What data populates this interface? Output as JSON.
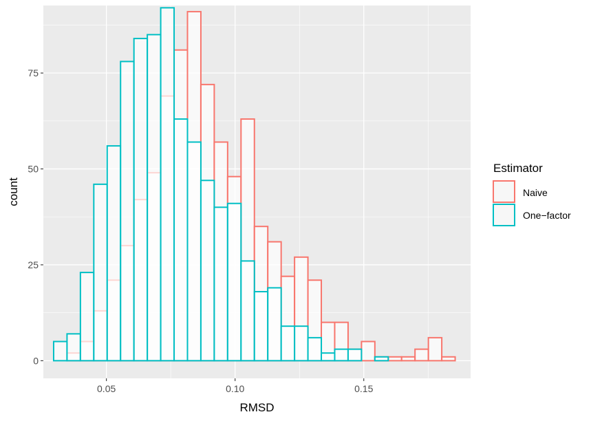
{
  "chart_data": {
    "type": "histogram",
    "xlabel": "RMSD",
    "ylabel": "count",
    "xlim": [
      0.0255,
      0.1915
    ],
    "ylim": [
      -4.6,
      92.6
    ],
    "x_ticks": [
      0.05,
      0.1,
      0.15
    ],
    "x_tick_labels": [
      "0.05",
      "0.10",
      "0.15"
    ],
    "y_ticks": [
      0,
      25,
      50,
      75
    ],
    "y_tick_labels": [
      "0",
      "25",
      "50",
      "75"
    ],
    "grid": true,
    "bin_width": 0.0052,
    "bin_starts": [
      0.0295,
      0.0347,
      0.0399,
      0.0451,
      0.0503,
      0.0555,
      0.0607,
      0.0659,
      0.0711,
      0.0763,
      0.0815,
      0.0867,
      0.0919,
      0.0971,
      0.1023,
      0.1075,
      0.1127,
      0.1179,
      0.1231,
      0.1283,
      0.1335,
      0.1387,
      0.1439,
      0.1491,
      0.1543,
      0.1595,
      0.1647,
      0.1699,
      0.1751,
      0.1803
    ],
    "legend": {
      "title": "Estimator",
      "position": "right"
    },
    "series": [
      {
        "name": "Naive",
        "color": "#F8766D",
        "values": [
          0,
          2,
          5,
          13,
          21,
          30,
          42,
          49,
          69,
          81,
          91,
          72,
          57,
          48,
          63,
          35,
          31,
          22,
          27,
          21,
          10,
          10,
          3,
          5,
          1,
          1,
          1,
          3,
          6,
          1
        ]
      },
      {
        "name": "One−factor",
        "color": "#00BFC4",
        "values": [
          5,
          7,
          23,
          46,
          56,
          78,
          84,
          85,
          92,
          63,
          57,
          47,
          40,
          41,
          26,
          18,
          19,
          9,
          9,
          6,
          2,
          3,
          3,
          0,
          1,
          0,
          0,
          0,
          0,
          0
        ]
      }
    ]
  }
}
